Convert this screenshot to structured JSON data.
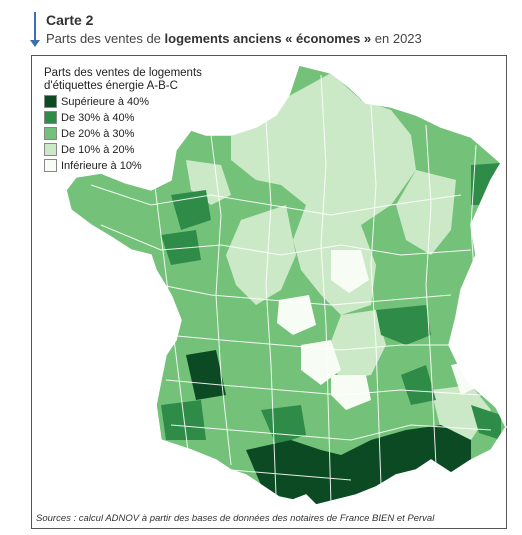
{
  "header": {
    "label": "Carte 2",
    "title_pre": "Parts des ventes de ",
    "title_bold": "logements anciens « économes »",
    "title_post": " en 2023"
  },
  "legend": {
    "title_line1": "Parts des ventes de logements",
    "title_line2": "d'étiquettes énergie A-B-C",
    "items": [
      {
        "label": "Supérieure à 40%",
        "color": "#0b4a23"
      },
      {
        "label": "De 30% à 40%",
        "color": "#2e8b48"
      },
      {
        "label": "De 20% à 30%",
        "color": "#74c27a"
      },
      {
        "label": "De 10% à 20%",
        "color": "#cce9c7"
      },
      {
        "label": "Inférieure à 10%",
        "color": "#f7fcf5"
      }
    ]
  },
  "source": "Sources : calcul ADNOV à partir des bases de données des notaires de France BIEN et Perval"
}
